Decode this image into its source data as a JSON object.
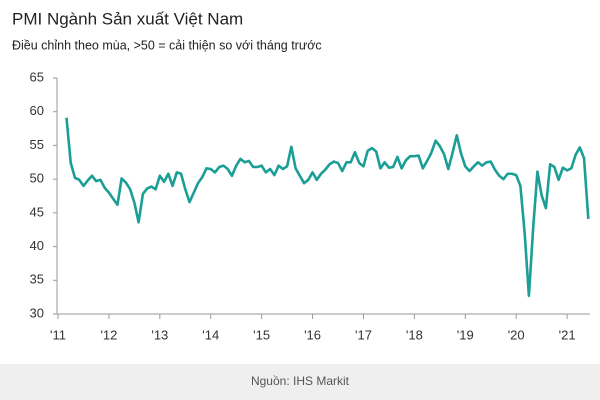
{
  "chart_data": {
    "type": "line",
    "title": "PMI Ngành Sản xuất Việt Nam",
    "subtitle": "Điều chỉnh theo mùa, >50 = cải thiện so với tháng trước",
    "source": "Nguồn: IHS Markit",
    "color": "#1a9e96",
    "x": [
      2011.167,
      2011.25,
      2011.333,
      2011.417,
      2011.5,
      2011.583,
      2011.667,
      2011.75,
      2011.833,
      2011.917,
      2012,
      2012.083,
      2012.167,
      2012.25,
      2012.333,
      2012.417,
      2012.5,
      2012.583,
      2012.667,
      2012.75,
      2012.833,
      2012.917,
      2013,
      2013.083,
      2013.167,
      2013.25,
      2013.333,
      2013.417,
      2013.5,
      2013.583,
      2013.667,
      2013.75,
      2013.833,
      2013.917,
      2014,
      2014.083,
      2014.167,
      2014.25,
      2014.333,
      2014.417,
      2014.5,
      2014.583,
      2014.667,
      2014.75,
      2014.833,
      2014.917,
      2015,
      2015.083,
      2015.167,
      2015.25,
      2015.333,
      2015.417,
      2015.5,
      2015.583,
      2015.667,
      2015.75,
      2015.833,
      2015.917,
      2016,
      2016.083,
      2016.167,
      2016.25,
      2016.333,
      2016.417,
      2016.5,
      2016.583,
      2016.667,
      2016.75,
      2016.833,
      2016.917,
      2017,
      2017.083,
      2017.167,
      2017.25,
      2017.333,
      2017.417,
      2017.5,
      2017.583,
      2017.667,
      2017.75,
      2017.833,
      2017.917,
      2018,
      2018.083,
      2018.167,
      2018.25,
      2018.333,
      2018.417,
      2018.5,
      2018.583,
      2018.667,
      2018.75,
      2018.833,
      2018.917,
      2019,
      2019.083,
      2019.167,
      2019.25,
      2019.333,
      2019.417,
      2019.5,
      2019.583,
      2019.667,
      2019.75,
      2019.833,
      2019.917,
      2020,
      2020.083,
      2020.167,
      2020.25,
      2020.333,
      2020.417,
      2020.5,
      2020.583,
      2020.667,
      2020.75,
      2020.833,
      2020.917,
      2021,
      2021.083,
      2021.167,
      2021.25,
      2021.333,
      2021.417
    ],
    "values": [
      59.1,
      52.4,
      50.2,
      49.9,
      49.0,
      49.8,
      50.5,
      49.7,
      49.9,
      48.7,
      48.0,
      47.1,
      46.2,
      50.1,
      49.5,
      48.5,
      46.5,
      43.6,
      47.8,
      48.6,
      48.9,
      48.5,
      50.5,
      49.6,
      50.8,
      49.0,
      51.0,
      50.8,
      48.5,
      46.6,
      48.0,
      49.4,
      50.3,
      51.6,
      51.5,
      51.0,
      51.8,
      52.0,
      51.5,
      50.5,
      52.0,
      53.0,
      52.5,
      52.7,
      51.8,
      51.8,
      52.0,
      51.0,
      51.5,
      50.6,
      52.0,
      51.5,
      51.9,
      54.8,
      51.6,
      50.5,
      49.4,
      49.9,
      51.0,
      49.9,
      50.8,
      51.4,
      52.2,
      52.6,
      52.4,
      51.2,
      52.5,
      52.5,
      54.0,
      52.4,
      51.9,
      54.2,
      54.6,
      54.1,
      51.6,
      52.5,
      51.7,
      51.8,
      53.3,
      51.6,
      52.8,
      53.4,
      53.4,
      53.5,
      51.6,
      52.7,
      53.9,
      55.7,
      54.9,
      53.7,
      51.5,
      53.9,
      56.5,
      53.8,
      51.9,
      51.2,
      51.9,
      52.5,
      52.0,
      52.5,
      52.6,
      51.4,
      50.5,
      50.0,
      50.8,
      50.8,
      50.6,
      49.0,
      41.9,
      32.7,
      42.7,
      51.1,
      47.6,
      45.7,
      52.2,
      51.8,
      49.9,
      51.7,
      51.3,
      51.6,
      53.6,
      54.7,
      53.1,
      44.1
    ],
    "xlim": [
      2010.98,
      2021.45
    ],
    "xticks": [
      {
        "value": 2011,
        "label": "'11"
      },
      {
        "value": 2012,
        "label": "'12"
      },
      {
        "value": 2013,
        "label": "'13"
      },
      {
        "value": 2014,
        "label": "'14"
      },
      {
        "value": 2015,
        "label": "'15"
      },
      {
        "value": 2016,
        "label": "'16"
      },
      {
        "value": 2017,
        "label": "'17"
      },
      {
        "value": 2018,
        "label": "'18"
      },
      {
        "value": 2019,
        "label": "'19"
      },
      {
        "value": 2020,
        "label": "'20"
      },
      {
        "value": 2021,
        "label": "'21"
      }
    ],
    "ylim": [
      30,
      65
    ],
    "yticks": [
      30,
      35,
      40,
      45,
      50,
      55,
      60,
      65
    ],
    "grid": false
  }
}
